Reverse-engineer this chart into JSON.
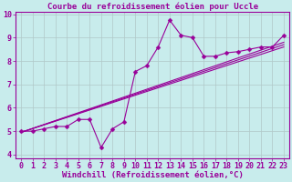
{
  "title": "Courbe du refroidissement éolien pour Uccle",
  "xlabel": "Windchill (Refroidissement éolien,°C)",
  "background_color": "#c8ecec",
  "line_color": "#990099",
  "grid_color": "#b0c8c8",
  "xmin": -0.5,
  "xmax": 23.5,
  "ymin": 3.85,
  "ymax": 10.1,
  "yticks": [
    4,
    5,
    6,
    7,
    8,
    9,
    10
  ],
  "xticks": [
    0,
    1,
    2,
    3,
    4,
    5,
    6,
    7,
    8,
    9,
    10,
    11,
    12,
    13,
    14,
    15,
    16,
    17,
    18,
    19,
    20,
    21,
    22,
    23
  ],
  "line1_x": [
    0,
    1,
    2,
    3,
    4,
    5,
    6,
    7,
    8,
    9,
    10,
    11,
    12,
    13,
    14,
    15,
    16,
    17,
    18,
    19,
    20,
    21,
    22,
    23
  ],
  "line1_y": [
    5.0,
    5.0,
    5.1,
    5.2,
    5.2,
    5.5,
    5.5,
    4.3,
    5.1,
    5.4,
    7.55,
    7.8,
    8.6,
    9.75,
    9.1,
    9.0,
    8.2,
    8.2,
    8.35,
    8.4,
    8.5,
    8.6,
    8.6,
    9.1
  ],
  "line2_x": [
    0,
    23
  ],
  "line2_y": [
    4.95,
    8.6
  ],
  "line3_x": [
    0,
    23
  ],
  "line3_y": [
    4.95,
    8.7
  ],
  "line4_x": [
    0,
    23
  ],
  "line4_y": [
    4.95,
    8.8
  ],
  "title_fontsize": 6.5,
  "xlabel_fontsize": 6.5,
  "tick_fontsize": 6,
  "markersize": 2.5
}
